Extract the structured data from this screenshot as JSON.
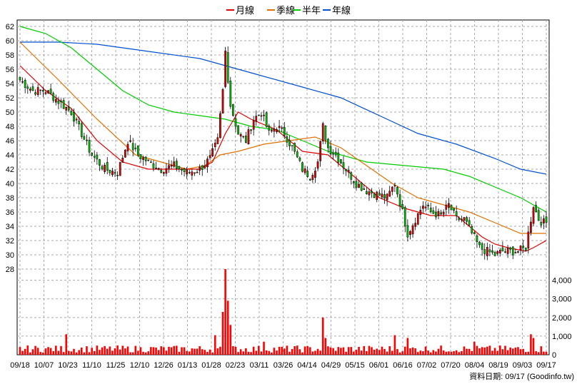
{
  "chart_data": {
    "type": "candlestick",
    "legend": {
      "placement": "top-center",
      "items": [
        {
          "label": "月線",
          "color": "#e00000"
        },
        {
          "label": "季線",
          "color": "#e07000"
        },
        {
          "label": "半年",
          "color": "#00cc00"
        },
        {
          "label": "年線",
          "color": "#0050d0"
        }
      ]
    },
    "price_axis": {
      "min": 28,
      "max": 62,
      "step": 2,
      "side": "left"
    },
    "volume_axis": {
      "min": 0,
      "max": 4000,
      "ticks": [
        0,
        1000,
        2000,
        3000,
        4000
      ],
      "tick_labels": [
        "0",
        "1,000",
        "2,000",
        "3,000",
        "4,000"
      ],
      "side": "right"
    },
    "x_tick_labels": [
      "09/18",
      "10/07",
      "10/23",
      "11/10",
      "11/25",
      "12/10",
      "12/26",
      "01/13",
      "01/28",
      "02/23",
      "03/11",
      "03/26",
      "04/14",
      "04/29",
      "05/15",
      "06/01",
      "06/16",
      "07/02",
      "07/20",
      "08/04",
      "08/19",
      "09/03",
      "09/17"
    ],
    "grid": true,
    "footnote": "資料日期: 09/17 (Goodinfo.tw)",
    "up_color": "#e00000",
    "down_color": "#00c000",
    "volume_color": "#ff0000",
    "close_anchors": [
      {
        "i": 0,
        "c": 54.5
      },
      {
        "i": 5,
        "c": 53
      },
      {
        "i": 10,
        "c": 53
      },
      {
        "i": 15,
        "c": 51.5
      },
      {
        "i": 20,
        "c": 50
      },
      {
        "i": 24,
        "c": 47
      },
      {
        "i": 28,
        "c": 44
      },
      {
        "i": 33,
        "c": 42
      },
      {
        "i": 38,
        "c": 41.5
      },
      {
        "i": 42,
        "c": 46
      },
      {
        "i": 46,
        "c": 44
      },
      {
        "i": 50,
        "c": 43
      },
      {
        "i": 55,
        "c": 42
      },
      {
        "i": 60,
        "c": 42.5
      },
      {
        "i": 65,
        "c": 41.5
      },
      {
        "i": 70,
        "c": 42
      },
      {
        "i": 74,
        "c": 43.5
      },
      {
        "i": 77,
        "c": 46
      },
      {
        "i": 79,
        "c": 53
      },
      {
        "i": 80,
        "c": 58.5
      },
      {
        "i": 82,
        "c": 51
      },
      {
        "i": 85,
        "c": 47
      },
      {
        "i": 88,
        "c": 46
      },
      {
        "i": 91,
        "c": 49
      },
      {
        "i": 94,
        "c": 50
      },
      {
        "i": 97,
        "c": 47
      },
      {
        "i": 100,
        "c": 48
      },
      {
        "i": 103,
        "c": 47
      },
      {
        "i": 106,
        "c": 45
      },
      {
        "i": 110,
        "c": 42
      },
      {
        "i": 113,
        "c": 41
      },
      {
        "i": 116,
        "c": 43
      },
      {
        "i": 118,
        "c": 48
      },
      {
        "i": 120,
        "c": 45
      },
      {
        "i": 123,
        "c": 44
      },
      {
        "i": 127,
        "c": 42
      },
      {
        "i": 131,
        "c": 40
      },
      {
        "i": 135,
        "c": 39
      },
      {
        "i": 139,
        "c": 38.5
      },
      {
        "i": 143,
        "c": 38
      },
      {
        "i": 146,
        "c": 40
      },
      {
        "i": 149,
        "c": 36
      },
      {
        "i": 151,
        "c": 33
      },
      {
        "i": 154,
        "c": 35
      },
      {
        "i": 157,
        "c": 37
      },
      {
        "i": 160,
        "c": 36
      },
      {
        "i": 164,
        "c": 35.5
      },
      {
        "i": 167,
        "c": 37
      },
      {
        "i": 170,
        "c": 35
      },
      {
        "i": 173,
        "c": 35
      },
      {
        "i": 176,
        "c": 33
      },
      {
        "i": 179,
        "c": 31
      },
      {
        "i": 182,
        "c": 30.5
      },
      {
        "i": 185,
        "c": 30
      },
      {
        "i": 188,
        "c": 30.5
      },
      {
        "i": 191,
        "c": 30.5
      },
      {
        "i": 194,
        "c": 30.5
      },
      {
        "i": 197,
        "c": 31
      },
      {
        "i": 199,
        "c": 35
      },
      {
        "i": 200,
        "c": 37
      },
      {
        "i": 202,
        "c": 35
      },
      {
        "i": 204,
        "c": 34.5
      }
    ],
    "volume_spikes": [
      {
        "i": 18,
        "v": 1100
      },
      {
        "i": 76,
        "v": 1050
      },
      {
        "i": 79,
        "v": 2300
      },
      {
        "i": 80,
        "v": 4600
      },
      {
        "i": 81,
        "v": 2900
      },
      {
        "i": 82,
        "v": 1600
      },
      {
        "i": 95,
        "v": 700
      },
      {
        "i": 118,
        "v": 2000
      },
      {
        "i": 119,
        "v": 900
      },
      {
        "i": 146,
        "v": 1050
      },
      {
        "i": 151,
        "v": 900
      },
      {
        "i": 177,
        "v": 700
      },
      {
        "i": 199,
        "v": 1100
      },
      {
        "i": 200,
        "v": 900
      }
    ],
    "ma_month": [
      [
        0,
        56.5
      ],
      [
        10,
        53
      ],
      [
        20,
        50.5
      ],
      [
        30,
        46
      ],
      [
        40,
        43
      ],
      [
        50,
        42
      ],
      [
        60,
        42
      ],
      [
        70,
        42
      ],
      [
        75,
        43
      ],
      [
        80,
        47
      ],
      [
        85,
        50
      ],
      [
        90,
        49
      ],
      [
        100,
        47.5
      ],
      [
        110,
        44.5
      ],
      [
        120,
        44
      ],
      [
        130,
        41
      ],
      [
        140,
        38
      ],
      [
        150,
        36.5
      ],
      [
        160,
        35.5
      ],
      [
        170,
        35.5
      ],
      [
        180,
        32.5
      ],
      [
        185,
        31.5
      ],
      [
        190,
        31
      ],
      [
        197,
        30.5
      ],
      [
        200,
        31
      ],
      [
        205,
        32
      ]
    ],
    "ma_quarter": [
      [
        0,
        59.8
      ],
      [
        15,
        54.5
      ],
      [
        30,
        49
      ],
      [
        45,
        44
      ],
      [
        55,
        43
      ],
      [
        65,
        42
      ],
      [
        72,
        42.5
      ],
      [
        78,
        44
      ],
      [
        85,
        44.5
      ],
      [
        95,
        45.5
      ],
      [
        105,
        46
      ],
      [
        115,
        46.5
      ],
      [
        125,
        45
      ],
      [
        135,
        42.5
      ],
      [
        145,
        40
      ],
      [
        155,
        38
      ],
      [
        165,
        37
      ],
      [
        175,
        36
      ],
      [
        185,
        34.5
      ],
      [
        195,
        33
      ],
      [
        205,
        33
      ]
    ],
    "ma_half": [
      [
        0,
        62
      ],
      [
        10,
        61
      ],
      [
        20,
        59
      ],
      [
        30,
        56
      ],
      [
        40,
        53
      ],
      [
        50,
        51
      ],
      [
        60,
        50
      ],
      [
        70,
        49.5
      ],
      [
        80,
        49
      ],
      [
        90,
        48
      ],
      [
        100,
        47.5
      ],
      [
        110,
        46
      ],
      [
        120,
        44.5
      ],
      [
        135,
        43
      ],
      [
        150,
        42.5
      ],
      [
        165,
        42
      ],
      [
        175,
        41
      ],
      [
        185,
        39.5
      ],
      [
        195,
        38
      ],
      [
        205,
        36
      ]
    ],
    "ma_year": [
      [
        0,
        59.8
      ],
      [
        15,
        59.8
      ],
      [
        30,
        59.5
      ],
      [
        50,
        58.5
      ],
      [
        70,
        57.5
      ],
      [
        90,
        55.5
      ],
      [
        110,
        53.5
      ],
      [
        125,
        52
      ],
      [
        140,
        49.5
      ],
      [
        155,
        47
      ],
      [
        170,
        45.5
      ],
      [
        185,
        43.5
      ],
      [
        195,
        42
      ],
      [
        205,
        41.3
      ]
    ]
  }
}
